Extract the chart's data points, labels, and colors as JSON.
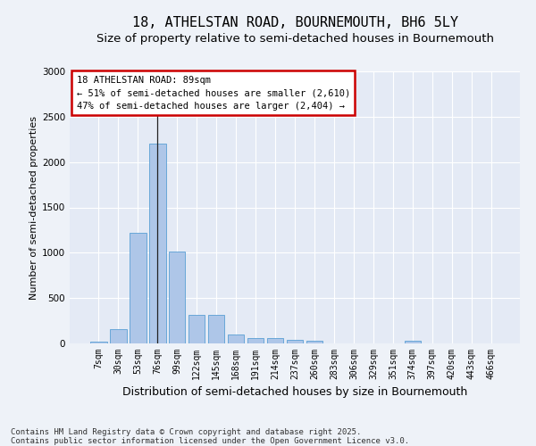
{
  "title": "18, ATHELSTAN ROAD, BOURNEMOUTH, BH6 5LY",
  "subtitle": "Size of property relative to semi-detached houses in Bournemouth",
  "xlabel": "Distribution of semi-detached houses by size in Bournemouth",
  "ylabel": "Number of semi-detached properties",
  "categories": [
    "7sqm",
    "30sqm",
    "53sqm",
    "76sqm",
    "99sqm",
    "122sqm",
    "145sqm",
    "168sqm",
    "191sqm",
    "214sqm",
    "237sqm",
    "260sqm",
    "283sqm",
    "306sqm",
    "329sqm",
    "351sqm",
    "374sqm",
    "397sqm",
    "420sqm",
    "443sqm",
    "466sqm"
  ],
  "values": [
    20,
    155,
    1220,
    2200,
    1010,
    310,
    310,
    100,
    60,
    55,
    40,
    30,
    0,
    0,
    0,
    0,
    30,
    0,
    0,
    0,
    0
  ],
  "bar_color": "#aec6e8",
  "bar_edge_color": "#5a9fd4",
  "vline_index": 3,
  "vline_color": "#222222",
  "annotation_title": "18 ATHELSTAN ROAD: 89sqm",
  "annotation_line1": "← 51% of semi-detached houses are smaller (2,610)",
  "annotation_line2": "47% of semi-detached houses are larger (2,404) →",
  "annotation_box_color": "#ffffff",
  "annotation_box_edge": "#cc0000",
  "footer1": "Contains HM Land Registry data © Crown copyright and database right 2025.",
  "footer2": "Contains public sector information licensed under the Open Government Licence v3.0.",
  "ylim": [
    0,
    3000
  ],
  "yticks": [
    0,
    500,
    1000,
    1500,
    2000,
    2500,
    3000
  ],
  "bg_color": "#eef2f8",
  "plot_bg_color": "#e4eaf5",
  "grid_color": "#ffffff",
  "title_fontsize": 11,
  "subtitle_fontsize": 9.5,
  "ylabel_fontsize": 8,
  "xlabel_fontsize": 9,
  "tick_fontsize": 7,
  "annot_fontsize": 7.5,
  "footer_fontsize": 6.5
}
